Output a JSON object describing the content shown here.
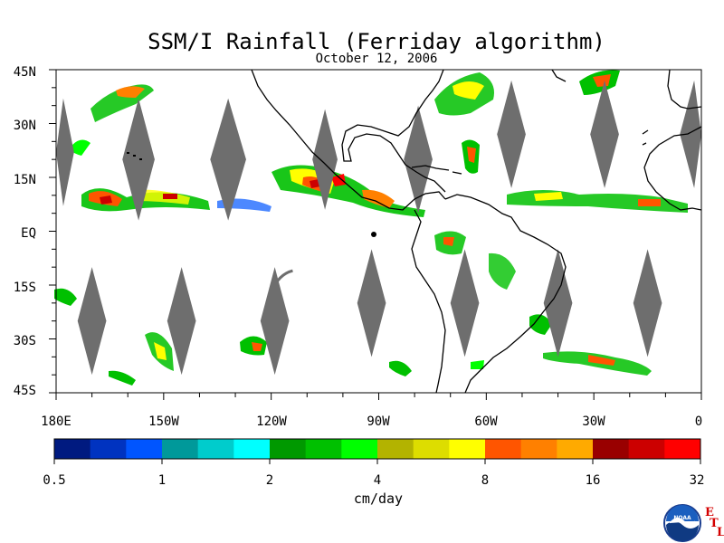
{
  "header": {
    "title": "SSM/I Rainfall (Ferriday algorithm)",
    "date": "October 12, 2006"
  },
  "map": {
    "lat_labels": [
      "45N",
      "30N",
      "15N",
      "EQ",
      "15S",
      "30S",
      "45S"
    ],
    "lat_values": [
      45,
      30,
      15,
      0,
      -15,
      -30,
      -45
    ],
    "lon_labels": [
      "180E",
      "150W",
      "120W",
      "90W",
      "60W",
      "30W",
      "0"
    ],
    "lon_values": [
      -180,
      -150,
      -120,
      -90,
      -60,
      -30,
      0
    ],
    "lon_range": [
      -180,
      0
    ],
    "lat_range": [
      -45,
      45
    ],
    "land_outline_color": "#000000",
    "no_data_color": "#6e6e6e"
  },
  "colorbar": {
    "labels": [
      "0.5",
      "1",
      "2",
      "4",
      "8",
      "16",
      "32"
    ],
    "unit": "cm/day",
    "colors": [
      "#001a80",
      "#0033c0",
      "#0055ff",
      "#00999a",
      "#00cccc",
      "#00ffff",
      "#009900",
      "#00c000",
      "#00ff00",
      "#b3b300",
      "#dddd00",
      "#ffff00",
      "#ff5500",
      "#ff8000",
      "#ffaa00",
      "#990000",
      "#cc0000",
      "#ff0000"
    ]
  },
  "logo": {
    "icon": "noaa-logo-icon",
    "text": "NOAA",
    "letters": [
      "E",
      "T",
      "L"
    ]
  }
}
